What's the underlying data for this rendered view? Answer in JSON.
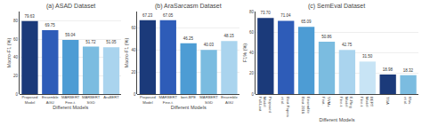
{
  "chart_data": [
    {
      "type": "bar",
      "title": "(a) ASAD Dataset",
      "xlabel": "Different Models",
      "ylabel": "Macro-F1 (%)",
      "categories": [
        "Proposed\nModel",
        "Ensemble\nAGU",
        "MARBERT\nFine-t.",
        "MARBERT\nSGD",
        "AraBERT"
      ],
      "values": [
        79.63,
        69.75,
        59.04,
        51.72,
        51.05
      ],
      "colors": [
        "#1b3a7a",
        "#2e5cb8",
        "#4d9cd4",
        "#7bbce0",
        "#aad4ee"
      ],
      "ylim": [
        0,
        90
      ],
      "yticks": [
        0,
        20,
        40,
        60,
        80
      ],
      "grid": true,
      "data_labels": true
    },
    {
      "type": "bar",
      "title": "(b) AraSarcasm Dataset",
      "xlabel": "Different Models",
      "ylabel": "Macro-F1 (%)",
      "categories": [
        "Proposed\nModel",
        "MARBERT\nFine-t.",
        "bert-BPE",
        "MARBERT\nSGD",
        "Ensemble\nAGU"
      ],
      "values": [
        67.23,
        67.05,
        46.25,
        40.03,
        48.15
      ],
      "colors": [
        "#1b3a7a",
        "#2e5cb8",
        "#4d9cd4",
        "#7bbce0",
        "#aad4ee"
      ],
      "ylim": [
        0,
        75
      ],
      "yticks": [
        0,
        20,
        40,
        60
      ],
      "grid": true,
      "data_labels": true
    },
    {
      "type": "bar",
      "title": "(c) SemEval Dataset",
      "xlabel": "Different Models",
      "ylabel": "F1% (%)",
      "categories": [
        "Proposed\nModel\nFull-Last",
        "Best Papers\net al.",
        "Ensemble\nBest 2018",
        "SVM+\nFeat.",
        "E-Ring\nModel\nFine-t.",
        "BERT\nModel\nFine-t.",
        "TGA",
        "Wav.\net al."
      ],
      "values": [
        73.7,
        71.04,
        65.09,
        50.86,
        42.75,
        31.5,
        18.98,
        18.32
      ],
      "value_labels": [
        "73.70",
        "71.04",
        "65.09",
        "50.86",
        "42.75",
        "31.50",
        "18.98",
        "18.32"
      ],
      "colors": [
        "#1b3a7a",
        "#2e5cb8",
        "#4d9cd4",
        "#7bbce0",
        "#aad4ee",
        "#c8e4f5",
        "#1b3a7a",
        "#7bbce0"
      ],
      "ylim": [
        0,
        80
      ],
      "yticks": [
        0,
        20,
        40,
        60,
        80
      ],
      "grid": true,
      "data_labels": true
    }
  ]
}
